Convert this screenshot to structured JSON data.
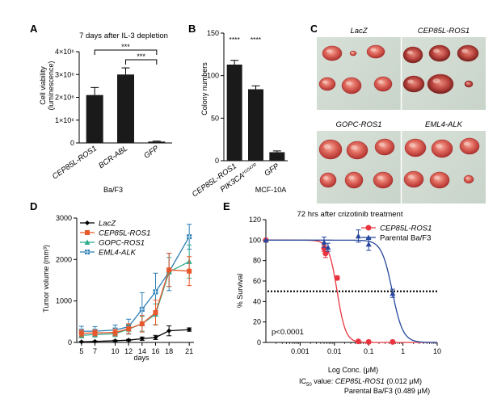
{
  "chart_data": [
    {
      "panel": "A",
      "type": "bar",
      "title": "7 days after IL-3 depletion",
      "ylabel": "Cell viability",
      "ylabel2": "(luminescence)",
      "xlabel": "Ba/F3",
      "categories": [
        "CEP85L-ROS1",
        "BCR-ABL",
        "GFP"
      ],
      "values": [
        2100000,
        3000000,
        60000
      ],
      "errors": [
        330000,
        290000,
        20000
      ],
      "ylim": [
        0,
        4000000
      ],
      "yticks": [
        "0",
        "1×10⁶",
        "2×10⁶",
        "3×10⁶",
        "4×10⁶"
      ],
      "yticks_values": [
        0,
        1000000,
        2000000,
        3000000,
        4000000
      ],
      "annotations": [
        "***",
        "***"
      ]
    },
    {
      "panel": "B",
      "type": "bar",
      "ylabel": "Colony numbers",
      "xlabel": "MCF-10A",
      "categories": [
        "CEP85L-ROS1",
        "PIK3CA",
        "GFP"
      ],
      "category_superscript": "H1047R",
      "values": [
        113,
        84,
        10
      ],
      "errors": [
        5,
        4,
        1.5
      ],
      "ylim": [
        0,
        150
      ],
      "yticks": [
        "0",
        "50",
        "100",
        "150"
      ],
      "yticks_values": [
        0,
        50,
        100,
        150
      ],
      "annotations": [
        "****",
        "****"
      ]
    },
    {
      "panel": "C",
      "type": "image-grid",
      "labels": [
        "LacZ",
        "CEP85L-ROS1",
        "GOPC-ROS1",
        "EML4-ALK"
      ]
    },
    {
      "panel": "D",
      "type": "line",
      "ylabel": "Tumor volume (mm³)",
      "xlabel": "days",
      "x": [
        5,
        7,
        10,
        12,
        14,
        16,
        18,
        21
      ],
      "xticks": [
        "5",
        "7",
        "10",
        "12",
        "14",
        "16",
        "18",
        "21"
      ],
      "ylim": [
        0,
        3000
      ],
      "yticks": [
        "0",
        "1000",
        "2000",
        "3000"
      ],
      "yticks_values": [
        0,
        1000,
        2000,
        3000
      ],
      "series": [
        {
          "name": "LacZ",
          "color": "#000000",
          "marker": "diamond",
          "values": [
            15,
            25,
            40,
            55,
            90,
            120,
            280,
            310
          ],
          "errors": [
            10,
            10,
            15,
            20,
            40,
            50,
            120,
            40
          ]
        },
        {
          "name": "CEP85L-ROS1",
          "color": "#e8582b",
          "marker": "square",
          "values": [
            220,
            230,
            240,
            330,
            450,
            720,
            1750,
            1720
          ],
          "errors": [
            80,
            70,
            80,
            120,
            200,
            300,
            400,
            350
          ]
        },
        {
          "name": "GOPC-ROS1",
          "color": "#2aab8e",
          "marker": "triangle",
          "values": [
            170,
            190,
            210,
            320,
            450,
            680,
            1700,
            1950
          ],
          "errors": [
            60,
            60,
            70,
            110,
            180,
            250,
            350,
            400
          ]
        },
        {
          "name": "EML4-ALK",
          "color": "#2b7fb8",
          "marker": "square-cross",
          "values": [
            270,
            270,
            300,
            380,
            800,
            1220,
            1700,
            2550
          ],
          "errors": [
            120,
            110,
            120,
            180,
            400,
            450,
            450,
            300
          ]
        }
      ]
    },
    {
      "panel": "E",
      "type": "scatter",
      "title": "72 hrs after crizotinib treatment",
      "ylabel": "% Survival",
      "xlabel": "Log Conc. (μM)",
      "xscale": "log",
      "xlim": [
        0.0001,
        10
      ],
      "xticks": [
        "0.001",
        "0.01",
        "0.1",
        "1",
        "10"
      ],
      "xticks_values": [
        0.001,
        0.01,
        0.1,
        1,
        10
      ],
      "ylim": [
        0,
        120
      ],
      "yticks": [
        "0",
        "20",
        "40",
        "60",
        "80",
        "100",
        "120"
      ],
      "yticks_values": [
        0,
        20,
        40,
        60,
        80,
        100,
        120
      ],
      "reference_line_y": 50,
      "annotation": "p<0.0001",
      "series": [
        {
          "name": "CEP85L-ROS1",
          "color": "#e8343e",
          "marker": "circle",
          "x": [
            0.0001,
            0.005,
            0.0055,
            0.012,
            0.05,
            0.1,
            0.5
          ],
          "y": [
            100,
            92,
            87,
            63,
            1,
            0.5,
            0.5
          ],
          "errors": [
            1,
            3,
            4,
            2,
            1,
            0.5,
            0.5
          ],
          "ic50": 0.012,
          "hill": 3.5
        },
        {
          "name": "Parental Ba/F3",
          "color": "#27479c",
          "marker": "triangle",
          "x": [
            0.0001,
            0.005,
            0.0065,
            0.05,
            0.1,
            0.5
          ],
          "y": [
            100,
            98,
            93,
            104,
            96,
            48
          ],
          "errors": [
            1,
            5,
            4,
            6,
            6,
            4
          ],
          "ic50": 0.489,
          "hill": 2.8
        }
      ],
      "ic50_prefix": "IC",
      "ic50_sub": "50",
      "ic50_lead": " value: ",
      "ic50_line1_name": "CEP85L-ROS1",
      "ic50_line1_val": " (0.012 μM)",
      "ic50_line2": "Parental Ba/F3 (0.489 μM)"
    }
  ],
  "panels": {
    "A": "A",
    "B": "B",
    "C": "C",
    "D": "D",
    "E": "E"
  }
}
